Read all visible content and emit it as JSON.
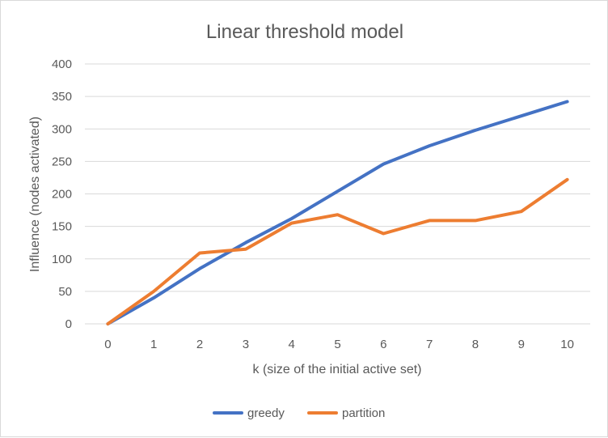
{
  "chart_data": {
    "type": "line",
    "title": "Linear threshold model",
    "xlabel": "k (size of the initial active set)",
    "ylabel": "Influence (nodes activated)",
    "categories": [
      "0",
      "1",
      "2",
      "3",
      "4",
      "5",
      "6",
      "7",
      "8",
      "9",
      "10"
    ],
    "ylim": [
      0,
      400
    ],
    "yticks": [
      0,
      50,
      100,
      150,
      200,
      250,
      300,
      350,
      400
    ],
    "grid": true,
    "legend_position": "bottom",
    "series": [
      {
        "name": "greedy",
        "color": "#4472C4",
        "values": [
          0,
          40,
          85,
          125,
          162,
          204,
          246,
          274,
          298,
          320,
          342
        ]
      },
      {
        "name": "partition",
        "color": "#ED7D31",
        "values": [
          0,
          50,
          109,
          115,
          155,
          168,
          139,
          159,
          159,
          173,
          222
        ]
      }
    ]
  }
}
